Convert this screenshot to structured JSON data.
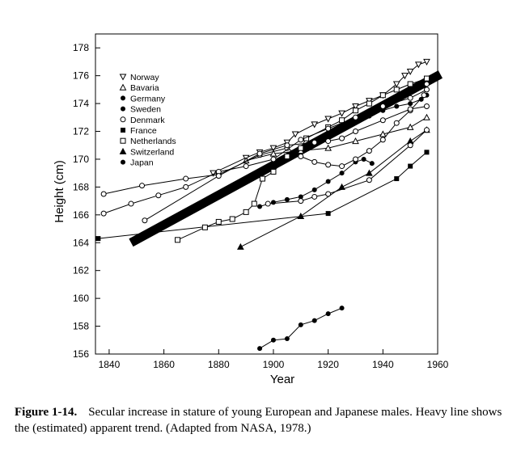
{
  "chart_data": {
    "type": "line",
    "xlabel": "Year",
    "ylabel": "Height (cm)",
    "xlim": [
      1835,
      1960
    ],
    "ylim": [
      156,
      179
    ],
    "xticks": [
      "1840",
      "1860",
      "1880",
      "1900",
      "1920",
      "1940",
      "1960"
    ],
    "yticks": [
      "156",
      "158",
      "160",
      "162",
      "164",
      "166",
      "168",
      "170",
      "172",
      "174",
      "176",
      "178"
    ],
    "grid": false,
    "legend_position": "top-left",
    "series": [
      {
        "name": "Norway",
        "marker": "triangle-down",
        "points": [
          [
            1878,
            169.0
          ],
          [
            1890,
            170.1
          ],
          [
            1895,
            170.5
          ],
          [
            1900,
            170.8
          ],
          [
            1905,
            171.2
          ],
          [
            1908,
            171.8
          ],
          [
            1915,
            172.5
          ],
          [
            1920,
            172.9
          ],
          [
            1925,
            173.3
          ],
          [
            1930,
            173.8
          ],
          [
            1935,
            174.2
          ],
          [
            1940,
            174.6
          ],
          [
            1945,
            175.4
          ],
          [
            1948,
            176.0
          ],
          [
            1950,
            176.3
          ],
          [
            1953,
            176.8
          ],
          [
            1956,
            177.0
          ]
        ]
      },
      {
        "name": "Bavaria",
        "marker": "triangle-up",
        "points": [
          [
            1890,
            169.9
          ],
          [
            1900,
            170.4
          ],
          [
            1910,
            170.6
          ],
          [
            1920,
            170.8
          ],
          [
            1930,
            171.3
          ],
          [
            1940,
            171.8
          ],
          [
            1950,
            172.3
          ],
          [
            1956,
            173.0
          ]
        ]
      },
      {
        "name": "Germany",
        "marker": "filled-circle",
        "points": [
          [
            1895,
            166.6
          ],
          [
            1900,
            166.9
          ],
          [
            1905,
            167.1
          ],
          [
            1910,
            167.3
          ],
          [
            1915,
            167.8
          ],
          [
            1920,
            168.4
          ],
          [
            1925,
            169.0
          ],
          [
            1930,
            169.8
          ],
          [
            1933,
            170.0
          ],
          [
            1936,
            169.7
          ]
        ]
      },
      {
        "name": "Sweden",
        "marker": "filled-circle",
        "points": [
          [
            1920,
            171.9
          ],
          [
            1925,
            172.2
          ],
          [
            1930,
            172.7
          ],
          [
            1935,
            173.1
          ],
          [
            1940,
            173.5
          ],
          [
            1945,
            173.8
          ],
          [
            1950,
            174.0
          ],
          [
            1954,
            174.3
          ],
          [
            1956,
            174.6
          ]
        ]
      },
      {
        "name": "Denmark",
        "marker": "open-circle",
        "points": [
          [
            1838,
            167.5
          ],
          [
            1852,
            168.1
          ],
          [
            1868,
            168.6
          ],
          [
            1880,
            168.9
          ],
          [
            1895,
            170.3
          ],
          [
            1905,
            170.8
          ],
          [
            1910,
            170.2
          ],
          [
            1915,
            169.8
          ],
          [
            1920,
            169.6
          ],
          [
            1925,
            169.5
          ],
          [
            1930,
            170.0
          ],
          [
            1935,
            170.6
          ],
          [
            1940,
            171.4
          ],
          [
            1945,
            172.6
          ],
          [
            1950,
            173.5
          ],
          [
            1955,
            174.6
          ],
          [
            1956,
            175.4
          ]
        ]
      },
      {
        "name": "France",
        "marker": "filled-square",
        "points": [
          [
            1836,
            164.3
          ],
          [
            1920,
            166.1
          ],
          [
            1945,
            168.6
          ],
          [
            1950,
            169.5
          ],
          [
            1956,
            170.5
          ]
        ]
      },
      {
        "name": "Netherlands",
        "marker": "open-square",
        "points": [
          [
            1865,
            164.2
          ],
          [
            1875,
            165.1
          ],
          [
            1880,
            165.5
          ],
          [
            1885,
            165.7
          ],
          [
            1890,
            166.2
          ],
          [
            1893,
            166.8
          ],
          [
            1896,
            168.6
          ],
          [
            1900,
            169.1
          ],
          [
            1905,
            170.2
          ],
          [
            1910,
            170.8
          ],
          [
            1912,
            171.5
          ],
          [
            1920,
            172.3
          ],
          [
            1925,
            172.8
          ],
          [
            1930,
            173.5
          ],
          [
            1935,
            174.0
          ],
          [
            1940,
            174.6
          ],
          [
            1945,
            175.0
          ],
          [
            1950,
            175.4
          ],
          [
            1956,
            175.8
          ]
        ]
      },
      {
        "name": "Switzerland",
        "marker": "filled-triangle",
        "points": [
          [
            1888,
            163.7
          ],
          [
            1910,
            165.9
          ],
          [
            1925,
            168.0
          ],
          [
            1935,
            169.0
          ],
          [
            1950,
            171.3
          ],
          [
            1956,
            172.1
          ]
        ]
      },
      {
        "name": "Japan",
        "marker": "filled-circle",
        "points": [
          [
            1895,
            156.4
          ],
          [
            1900,
            157.0
          ],
          [
            1905,
            157.1
          ],
          [
            1910,
            158.1
          ],
          [
            1915,
            158.4
          ],
          [
            1920,
            158.9
          ],
          [
            1925,
            159.3
          ]
        ]
      },
      {
        "name": "",
        "marker": "open-circle",
        "points": [
          [
            1838,
            166.1
          ],
          [
            1848,
            166.8
          ],
          [
            1858,
            167.4
          ],
          [
            1868,
            168.0
          ],
          [
            1880,
            169.1
          ],
          [
            1890,
            169.5
          ],
          [
            1900,
            170.0
          ],
          [
            1910,
            171.4
          ],
          [
            1920,
            172.2
          ],
          [
            1930,
            173.0
          ],
          [
            1940,
            173.8
          ],
          [
            1950,
            174.4
          ],
          [
            1956,
            175.0
          ]
        ]
      },
      {
        "name": "",
        "marker": "open-circle",
        "points": [
          [
            1853,
            165.6
          ],
          [
            1880,
            168.8
          ],
          [
            1895,
            170.4
          ],
          [
            1905,
            171.0
          ],
          [
            1915,
            171.2
          ],
          [
            1920,
            171.3
          ],
          [
            1925,
            171.5
          ],
          [
            1930,
            172.0
          ],
          [
            1940,
            172.8
          ],
          [
            1950,
            173.6
          ],
          [
            1956,
            173.8
          ]
        ]
      },
      {
        "name": "",
        "marker": "open-circle",
        "points": [
          [
            1898,
            166.8
          ],
          [
            1910,
            167.0
          ],
          [
            1915,
            167.3
          ],
          [
            1920,
            167.5
          ],
          [
            1935,
            168.5
          ],
          [
            1950,
            171.0
          ],
          [
            1956,
            172.1
          ]
        ]
      }
    ],
    "trend_line": {
      "points": [
        [
          1848,
          164.0
        ],
        [
          1961,
          176.1
        ]
      ]
    }
  },
  "caption": {
    "label": "Figure 1-14.",
    "text": "Secular increase in stature of young European and Japanese males. Heavy line shows the (estimated) apparent trend. (Adapted from NASA, 1978.)"
  },
  "colors": {
    "ink": "#000000",
    "background": "#ffffff"
  }
}
